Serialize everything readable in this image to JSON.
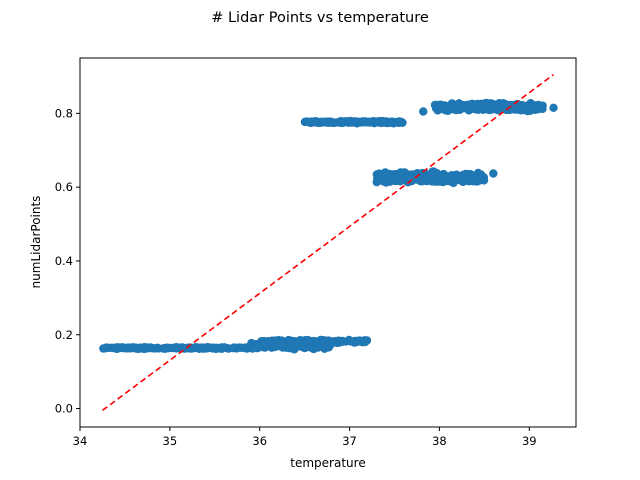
{
  "chart_data": {
    "type": "scatter",
    "title": "# Lidar Points vs temperature",
    "xlabel": "temperature",
    "ylabel": "numLidarPoints",
    "xlim": [
      34.0,
      39.52
    ],
    "ylim": [
      -0.05,
      0.95
    ],
    "xticks": [
      34,
      35,
      36,
      37,
      38,
      39
    ],
    "yticks": [
      0.0,
      0.2,
      0.4,
      0.6,
      0.8
    ],
    "grid": false,
    "point_color": "#1f77b4",
    "trend_color": "#ff0000",
    "clusters": [
      {
        "x_range": [
          34.25,
          35.9
        ],
        "y_center": 0.164,
        "y_spread": 0.003,
        "count": 170
      },
      {
        "x_range": [
          35.9,
          36.8
        ],
        "y_center": 0.171,
        "y_spread": 0.012,
        "count": 190
      },
      {
        "x_range": [
          36.0,
          37.2
        ],
        "y_center": 0.182,
        "y_spread": 0.005,
        "count": 120
      },
      {
        "x_range": [
          36.5,
          37.6
        ],
        "y_center": 0.776,
        "y_spread": 0.004,
        "count": 150
      },
      {
        "x_range": [
          37.3,
          38.5
        ],
        "y_center": 0.625,
        "y_spread": 0.02,
        "count": 330
      },
      {
        "x_range": [
          37.95,
          39.15
        ],
        "y_center": 0.817,
        "y_spread": 0.014,
        "count": 360
      }
    ],
    "outliers": [
      {
        "x": 38.6,
        "y": 0.637
      },
      {
        "x": 39.27,
        "y": 0.815
      },
      {
        "x": 37.82,
        "y": 0.805
      }
    ],
    "trend_line": {
      "x": [
        34.25,
        39.27
      ],
      "y": [
        -0.005,
        0.905
      ]
    }
  }
}
